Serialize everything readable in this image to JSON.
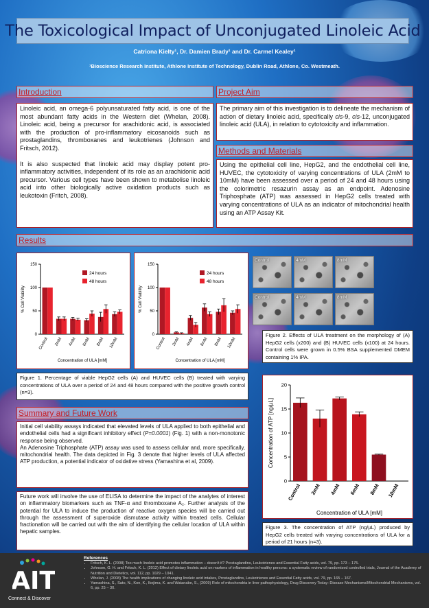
{
  "title": "The Toxicological Impact of Unconjugated Linoleic Acid",
  "authors": "Catriona Kielty¹, Dr. Damien Brady¹ and Dr. Carmel Kealey¹",
  "affiliation": "¹Bioscience Research Institute, Athlone Institute of Technology, Dublin Road, Athlone, Co. Westmeath.",
  "sections": {
    "introduction": {
      "heading": "Introduction",
      "p1": "Linoleic acid, an omega-6 polyunsaturated fatty acid, is one of the most abundant fatty acids in the Western diet (Whelan, 2008). Linoleic acid, being a precursor for arachidonic acid, is associated with the production of pro-inflammatory eicosanoids such as prostaglandins, thromboxanes and leukotrienes (Johnson and Fritsch, 2012).",
      "p2": "It is also suspected that linoleic acid may display potent pro-inflammatory activities, independent of its role as an arachidonic acid precursor. Various cell types have been shown to metabolise linoleic acid into other biologically active oxidation products such as leukotoxin (Fritch, 2008)."
    },
    "aim": {
      "heading": "Project Aim",
      "p1_a": "The primary aim of this investigation is to delineate the mechanism of action of dietary linoleic acid, specifically ",
      "p1_cis1": "cis",
      "p1_b": "-9, ",
      "p1_cis2": "cis",
      "p1_c": "-12, unconjugated linoleic acid (ULA), in relation to cytotoxicity and inflammation."
    },
    "methods": {
      "heading": "Methods and Materials",
      "p1": "Using the epithelial cell line, HepG2, and the endothelial cell line, HUVEC, the cytotoxicity of varying concentrations of ULA (2mM to 10mM) have been assessed over a period of 24 and 48 hours using the colorimetric resazurin assay as an endpoint. Adenosine Triphosphate (ATP) was assessed in HepG2 cells treated with varying concentrations of ULA as an indicator of mitochondrial health using an ATP Assay Kit."
    },
    "results": {
      "heading": "Results"
    },
    "summary": {
      "heading": "Summary and Future Work",
      "p1_a": "Initial cell viability assays indicated that elevated levels of ULA applied to both epithelial and endothelial cells had a significant inhibitory effect (",
      "p1_p": "P=0.0001",
      "p1_b": ") (Fig. 1) with a non-monotonic response being observed.",
      "p2": "An Adenosine Triphosphate (ATP) assay was used to assess cellular and, more specifically, mitochondrial health. The data depicted in Fig. 3 denote that higher levels of ULA affected ATP production, a potential indicator of oxidative stress (Yamashina et al, 2009).",
      "future": "Future work will involve the use of ELISA to determine the impact of the analytes of interest on inflammatory biomarkers such as TNF-α and thromboxane A₂. Further analysis of the potential for ULA to induce the production of reactive oxygen species will be carried out through the assessment of superoxide dismutase activity within treated cells. Cellular fractionation will be carried out with the aim of identifying the cellular location of ULA within hepatic samples."
    }
  },
  "figure1_caption": "Figure 1. Percentage of viable HepG2 cells (A) and HUVEC cells (B) treated with varying concentrations of ULA over a period of 24 and 48 hours compared with the positive growth control (n=3).",
  "figure2_caption": "Figure 2. Effects of ULA treatment on the morphology of (A) HepG2 cells (x200) and (B) HUVEC cells (x100) at 24 hours. Control cells were grown in 0.5% BSA supplemented DMEM containing 1% IPA.",
  "figure3_caption": "Figure 3. The concentration of ATP (ng/µL) produced by HepG2 cells treated with varying concentrations of ULA for a period of 21 hours (n=3).",
  "micrographs": {
    "row1": [
      "Control",
      "4mM",
      "8mM"
    ],
    "row2": [
      "Control",
      "4mM",
      "8mM"
    ]
  },
  "chart_data": [
    {
      "type": "bar",
      "categories": [
        "Control",
        "2mM",
        "4mM",
        "6mM",
        "8mM",
        "10mM"
      ],
      "series": [
        {
          "name": "24 hours",
          "values": [
            100,
            33,
            33,
            30,
            37,
            43
          ],
          "errors": [
            0,
            4,
            3,
            3,
            10,
            5
          ],
          "color": "#b01824"
        },
        {
          "name": "48 hours",
          "values": [
            100,
            33,
            31,
            44,
            54,
            48
          ],
          "errors": [
            0,
            4,
            3,
            6,
            9,
            4
          ],
          "color": "#e8232e"
        }
      ],
      "xlabel": "Concentration of ULA [mM]",
      "ylabel": "% Cell Viability",
      "ylim": [
        0,
        150
      ],
      "yticks": [
        0,
        50,
        100,
        150
      ],
      "legend": "top-right"
    },
    {
      "type": "bar",
      "categories": [
        "Control",
        "2mM",
        "4mM",
        "6mM",
        "8mM",
        "10mM"
      ],
      "series": [
        {
          "name": "24 hours",
          "values": [
            100,
            4,
            35,
            57,
            48,
            46
          ],
          "errors": [
            0,
            1,
            5,
            8,
            6,
            4
          ],
          "color": "#b01824"
        },
        {
          "name": "48 hours",
          "values": [
            100,
            2,
            20,
            43,
            62,
            54
          ],
          "errors": [
            0,
            1,
            5,
            5,
            14,
            9
          ],
          "color": "#e8232e"
        }
      ],
      "xlabel": "Concentration of ULA [mM]",
      "ylabel": "% Cell Viability",
      "ylim": [
        0,
        150
      ],
      "yticks": [
        0,
        50,
        100,
        150
      ],
      "legend": "top-right"
    },
    {
      "type": "bar",
      "categories": [
        "Control",
        "2mM",
        "4mM",
        "6mM",
        "8mM",
        "10mM"
      ],
      "series": [
        {
          "name": "ATP",
          "values": [
            16.3,
            13.0,
            17.2,
            13.9,
            5.5,
            0
          ],
          "errors": [
            1.0,
            1.8,
            0.3,
            0.5,
            0.1,
            0
          ],
          "colors": [
            "#a5141e",
            "#c1161f",
            "#b8141d",
            "#c9161f",
            "#8e0f1f",
            "#8e0f1f"
          ]
        }
      ],
      "xlabel": "Concentration of ULA [mM]",
      "ylabel": "Concentration of ATP [ng/µL]",
      "ylim": [
        0,
        20
      ],
      "yticks": [
        0,
        5,
        10,
        15,
        20
      ]
    }
  ],
  "references": {
    "heading": "References",
    "items": [
      "Fritsch, K. L. (2008) Too much linoleic acid promotes inflammation – doesn't it? Prostaglandins, Leukotrienes and Essential Fatty acids, vol. 79, pp. 173 – 175.",
      "Johnson, G. H. and Fritsch, K. L. (2012) Effect of dietary linoleic acid on markers of inflammation in healthy persons: a systematic review of randomised controlled trials, Journal of the Academy of Nutrition and Dietetics, vol. 112, pp. 1029 – 1041.",
      "Whelan, J. (2008) The health implications of changing linoleic acid intakes, Prostaglandins, Leukotrienes and Essential Fatty acids, vol. 79, pp. 165 – 167.",
      "Yamashina, S., Sato, N., Kon, K., Ikejima, K. and Watanabe, S., (2009) Role of mitochondria in liver pathophysiology, Drug Discovery Today: Disease Mechanisms/Mitochondrial Mechanisms, vol. 6, pp. 25 – 30."
    ]
  },
  "logo": {
    "text": "AIT",
    "tagline": "Connect & Discover"
  },
  "colors": {
    "accent": "#c41e25",
    "title_bg": "#9ec3e6",
    "title_text": "#10205e",
    "footer_bg": "#2f2f2f"
  }
}
